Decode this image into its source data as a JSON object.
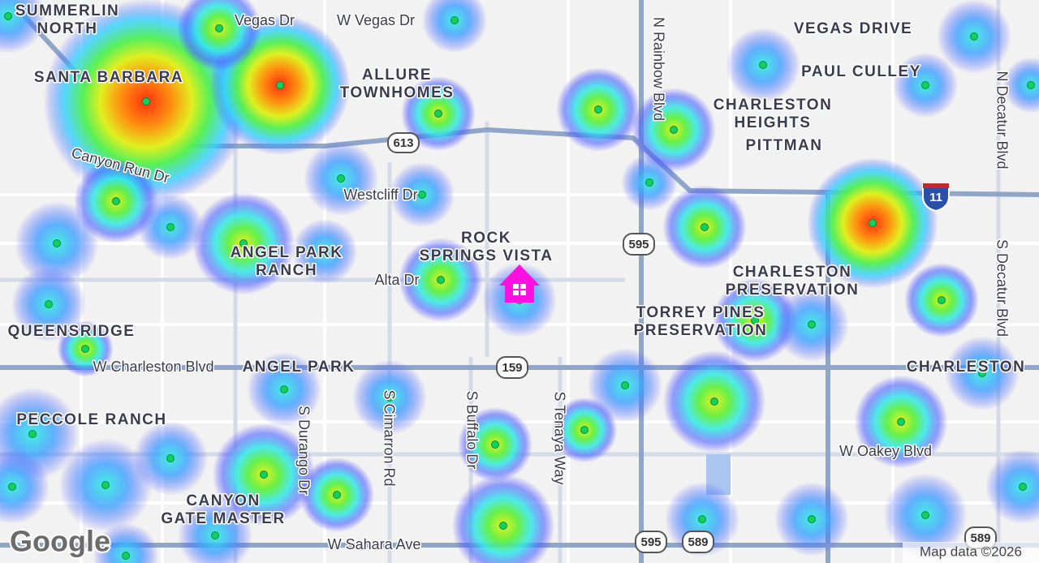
{
  "neighborhoods": [
    [
      "SUMMERLIN",
      "NORTH"
    ],
    [
      "SANTA BARBARA"
    ],
    [
      "ALLURE",
      "TOWNHOMES"
    ],
    [
      "VEGAS DRIVE"
    ],
    [
      "PAUL CULLEY"
    ],
    [
      "CHARLESTON",
      "HEIGHTS"
    ],
    [
      "PITTMAN"
    ],
    [
      "ROCK",
      "SPRINGS VISTA"
    ],
    [
      "ANGEL PARK",
      "RANCH"
    ],
    [
      "CHARLESTON",
      "PRESERVATION"
    ],
    [
      "TORREY PINES",
      "PRESERVATION"
    ],
    [
      "QUEENSRIDGE"
    ],
    [
      "ANGEL PARK"
    ],
    [
      "CHARLESTON"
    ],
    [
      "PECCOLE RANCH"
    ],
    [
      "CANYON",
      "GATE MASTER"
    ]
  ],
  "streets": [
    "Vegas Dr",
    "W Vegas Dr",
    "Canyon Run Dr",
    "Westcliff Dr",
    "Alta Dr",
    "W Charleston Blvd",
    "W Sahara Ave",
    "W Oakey Blvd",
    "N Rainbow Blvd",
    "N Decatur Blvd",
    "S Decatur Blvd",
    "S Durango Dr",
    "S Cimarron Rd",
    "S Buffalo Dr",
    "S Tenaya Way"
  ],
  "route_shields": [
    "613",
    "595",
    "159",
    "595",
    "589",
    "589",
    "11"
  ],
  "attribution": {
    "logo": "Google",
    "map_data": "Map data ©2026"
  }
}
